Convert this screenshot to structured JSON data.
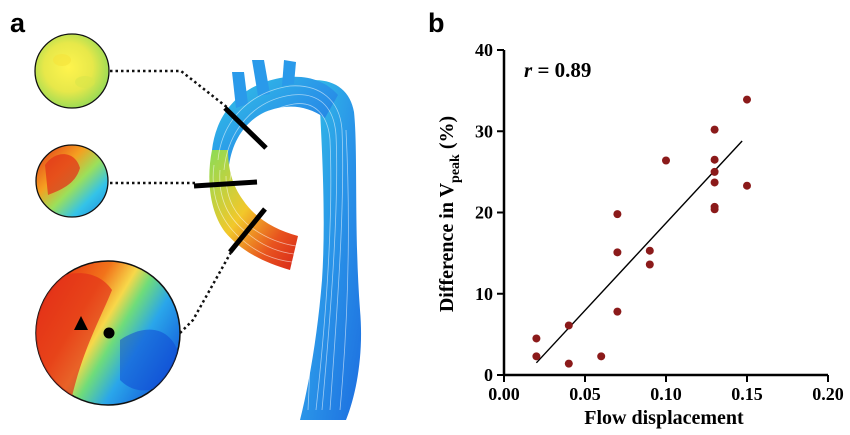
{
  "panels": {
    "a_label": "a",
    "b_label": "b"
  },
  "colors": {
    "marker": "#8b1a1a",
    "fit_line": "#000000",
    "flow_blue": "#1e7fe6",
    "hot": "#e63a12"
  },
  "chart_data": {
    "type": "scatter",
    "title": "",
    "xlabel": "Flow displacement",
    "ylabel_main": "Difference in V",
    "ylabel_sub": "peak",
    "ylabel_unit": "(%)",
    "xlim": [
      0.0,
      0.2
    ],
    "ylim": [
      0,
      40
    ],
    "xticks": [
      "0.00",
      "0.05",
      "0.10",
      "0.15",
      "0.20"
    ],
    "yticks": [
      "0",
      "10",
      "20",
      "30",
      "40"
    ],
    "annotation_r": "r",
    "annotation_value": " = 0.89",
    "grid": false,
    "series": [
      {
        "points": [
          [
            0.02,
            4.5
          ],
          [
            0.02,
            2.3
          ],
          [
            0.04,
            6.1
          ],
          [
            0.04,
            1.4
          ],
          [
            0.06,
            2.3
          ],
          [
            0.07,
            19.8
          ],
          [
            0.07,
            15.1
          ],
          [
            0.07,
            7.8
          ],
          [
            0.09,
            15.3
          ],
          [
            0.09,
            13.6
          ],
          [
            0.1,
            26.4
          ],
          [
            0.13,
            30.2
          ],
          [
            0.13,
            26.5
          ],
          [
            0.13,
            25.0
          ],
          [
            0.13,
            23.7
          ],
          [
            0.13,
            20.7
          ],
          [
            0.13,
            20.4
          ],
          [
            0.15,
            33.9
          ],
          [
            0.15,
            23.3
          ]
        ]
      }
    ],
    "fit_line": [
      [
        0.02,
        1.5
      ],
      [
        0.147,
        28.8
      ]
    ]
  }
}
